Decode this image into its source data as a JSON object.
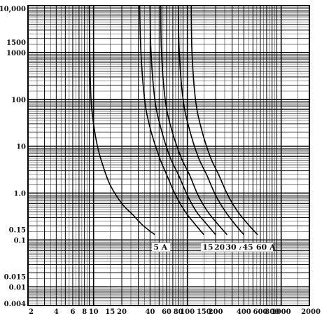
{
  "chart_data": {
    "type": "line",
    "title": "",
    "xlabel": "",
    "ylabel": "",
    "x_scale": "log",
    "y_scale": "log",
    "xlim": [
      2,
      2000
    ],
    "ylim": [
      0.004,
      10000
    ],
    "grid": true,
    "x_ticks": [
      {
        "value": 2,
        "label": "2"
      },
      {
        "value": 4,
        "label": "4"
      },
      {
        "value": 6,
        "label": "6"
      },
      {
        "value": 8,
        "label": "8"
      },
      {
        "value": 10,
        "label": "10"
      },
      {
        "value": 15,
        "label": "15"
      },
      {
        "value": 20,
        "label": "20"
      },
      {
        "value": 40,
        "label": "40"
      },
      {
        "value": 60,
        "label": "60"
      },
      {
        "value": 80,
        "label": "80"
      },
      {
        "value": 100,
        "label": "100"
      },
      {
        "value": 150,
        "label": "150"
      },
      {
        "value": 200,
        "label": "200"
      },
      {
        "value": 400,
        "label": "400"
      },
      {
        "value": 600,
        "label": "600"
      },
      {
        "value": 800,
        "label": "800"
      },
      {
        "value": 1000,
        "label": "1000"
      },
      {
        "value": 2000,
        "label": "2000"
      }
    ],
    "y_ticks": [
      {
        "value": 10000,
        "label": "10,000"
      },
      {
        "value": 1500,
        "label": "1500"
      },
      {
        "value": 1000,
        "label": "1000"
      },
      {
        "value": 100,
        "label": "100"
      },
      {
        "value": 10,
        "label": "10"
      },
      {
        "value": 1,
        "label": "1.0"
      },
      {
        "value": 0.15,
        "label": "0.15"
      },
      {
        "value": 0.1,
        "label": "0.1"
      },
      {
        "value": 0.015,
        "label": "0.015"
      },
      {
        "value": 0.01,
        "label": "0.01"
      },
      {
        "value": 0.004,
        "label": "0.004"
      }
    ],
    "series": [
      {
        "name": "5 A",
        "x": [
          9.0,
          9.1,
          9.4,
          10,
          11,
          12.5,
          15,
          20,
          26,
          34,
          45
        ],
        "y": [
          10000,
          1000,
          100,
          30,
          10,
          4,
          1.5,
          0.6,
          0.35,
          0.2,
          0.13
        ]
      },
      {
        "name": "15 A",
        "x": [
          31,
          32,
          35,
          40,
          50,
          60,
          75,
          95,
          120,
          150
        ],
        "y": [
          10000,
          1000,
          100,
          25,
          6,
          2.5,
          0.9,
          0.4,
          0.22,
          0.13
        ]
      },
      {
        "name": "20 A",
        "x": [
          40,
          41,
          45,
          52,
          65,
          80,
          100,
          125,
          160,
          200
        ],
        "y": [
          10000,
          1000,
          100,
          25,
          6,
          2.5,
          0.9,
          0.4,
          0.22,
          0.13
        ]
      },
      {
        "name": "30 A",
        "x": [
          52,
          53,
          58,
          67,
          85,
          105,
          130,
          165,
          210,
          265
        ],
        "y": [
          10000,
          1000,
          100,
          25,
          6,
          2.5,
          0.9,
          0.4,
          0.22,
          0.13
        ]
      },
      {
        "name": "45 A",
        "x": [
          80,
          82,
          90,
          104,
          130,
          160,
          200,
          255,
          320,
          400
        ],
        "y": [
          10000,
          1000,
          100,
          25,
          6,
          2.5,
          0.9,
          0.4,
          0.22,
          0.13
        ]
      },
      {
        "name": "60 A",
        "x": [
          110,
          112,
          122,
          140,
          175,
          215,
          270,
          345,
          440,
          560
        ],
        "y": [
          10000,
          1000,
          100,
          25,
          6,
          2.5,
          0.9,
          0.4,
          0.22,
          0.13
        ]
      }
    ]
  }
}
